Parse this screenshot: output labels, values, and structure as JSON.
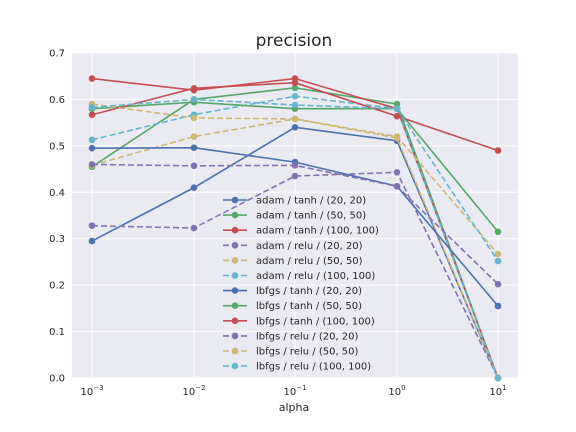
{
  "chart_data": {
    "type": "line",
    "title": "precision",
    "xlabel": "alpha",
    "ylabel": "",
    "x_scale": "log",
    "x": [
      0.001,
      0.01,
      0.1,
      1,
      10
    ],
    "x_ticks": [
      {
        "base": "10",
        "exp": "−3"
      },
      {
        "base": "10",
        "exp": "−2"
      },
      {
        "base": "10",
        "exp": "−1"
      },
      {
        "base": "10",
        "exp": "0"
      },
      {
        "base": "10",
        "exp": "1"
      }
    ],
    "ylim": [
      0.0,
      0.7
    ],
    "y_ticks": [
      "0.0",
      "0.1",
      "0.2",
      "0.3",
      "0.4",
      "0.5",
      "0.6",
      "0.7"
    ],
    "grid": true,
    "legend_position": "lower-center",
    "series": [
      {
        "name": "adam / tanh / (20, 20)",
        "color": "#4c72b0",
        "dashed": false,
        "values": [
          0.295,
          0.41,
          0.54,
          0.511,
          0.0
        ]
      },
      {
        "name": "adam / tanh / (50, 50)",
        "color": "#55a868",
        "dashed": false,
        "values": [
          0.455,
          0.6,
          0.625,
          0.59,
          0.0
        ]
      },
      {
        "name": "adam / tanh / (100, 100)",
        "color": "#c44e52",
        "dashed": false,
        "values": [
          0.645,
          0.62,
          0.645,
          0.58,
          0.0
        ]
      },
      {
        "name": "adam / relu / (20, 20)",
        "color": "#8172b2",
        "dashed": true,
        "values": [
          0.328,
          0.323,
          0.435,
          0.443,
          0.0
        ]
      },
      {
        "name": "adam / relu / (50, 50)",
        "color": "#ccb974",
        "dashed": true,
        "values": [
          0.458,
          0.52,
          0.558,
          0.517,
          0.0
        ]
      },
      {
        "name": "adam / relu / (100, 100)",
        "color": "#64b5cd",
        "dashed": true,
        "values": [
          0.513,
          0.567,
          0.607,
          0.58,
          0.0
        ]
      },
      {
        "name": "lbfgs / tanh / (20, 20)",
        "color": "#4c72b0",
        "dashed": false,
        "values": [
          0.495,
          0.496,
          0.465,
          0.413,
          0.155
        ]
      },
      {
        "name": "lbfgs / tanh / (50, 50)",
        "color": "#55a868",
        "dashed": false,
        "values": [
          0.58,
          0.594,
          0.58,
          0.58,
          0.315
        ]
      },
      {
        "name": "lbfgs / tanh / (100, 100)",
        "color": "#c44e52",
        "dashed": false,
        "values": [
          0.567,
          0.624,
          0.636,
          0.564,
          0.49
        ]
      },
      {
        "name": "lbfgs / relu / (20, 20)",
        "color": "#8172b2",
        "dashed": true,
        "values": [
          0.46,
          0.457,
          0.458,
          0.413,
          0.202
        ]
      },
      {
        "name": "lbfgs / relu / (50, 50)",
        "color": "#ccb974",
        "dashed": true,
        "values": [
          0.59,
          0.56,
          0.558,
          0.52,
          0.267
        ]
      },
      {
        "name": "lbfgs / relu / (100, 100)",
        "color": "#64b5cd",
        "dashed": true,
        "values": [
          0.583,
          0.6,
          0.588,
          0.58,
          0.252
        ]
      }
    ]
  }
}
